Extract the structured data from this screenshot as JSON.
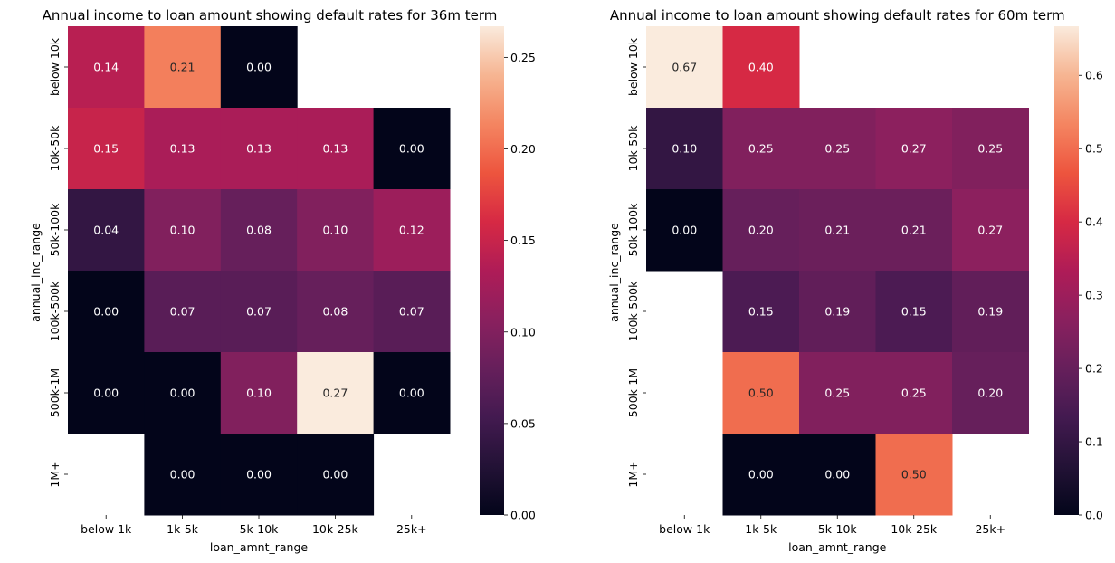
{
  "chart_data": [
    {
      "type": "heatmap",
      "title": "Annual income to loan amount showing default rates for 36m term",
      "xlabel": "loan_amnt_range",
      "ylabel": "annual_inc_range",
      "x_categories": [
        "below 1k",
        "1k-5k",
        "5k-10k",
        "10k-25k",
        "25k+"
      ],
      "y_categories": [
        "below 10k",
        "10k-50k",
        "50k-100k",
        "100k-500k",
        "500k-1M",
        "1M+"
      ],
      "values": [
        [
          0.14,
          0.21,
          0.0,
          null,
          null
        ],
        [
          0.15,
          0.13,
          0.13,
          0.13,
          0.0
        ],
        [
          0.04,
          0.1,
          0.08,
          0.1,
          0.12
        ],
        [
          0.0,
          0.07,
          0.07,
          0.08,
          0.07
        ],
        [
          0.0,
          0.0,
          0.1,
          0.27,
          0.0
        ],
        [
          null,
          0.0,
          0.0,
          0.0,
          null
        ]
      ],
      "value_labels": [
        [
          "0.14",
          "0.21",
          "0.00",
          "",
          ""
        ],
        [
          "0.15",
          "0.13",
          "0.13",
          "0.13",
          "0.00"
        ],
        [
          "0.04",
          "0.10",
          "0.08",
          "0.10",
          "0.12"
        ],
        [
          "0.00",
          "0.07",
          "0.07",
          "0.08",
          "0.07"
        ],
        [
          "0.00",
          "0.00",
          "0.10",
          "0.27",
          "0.00"
        ],
        [
          "",
          "0.00",
          "0.00",
          "0.00",
          ""
        ]
      ],
      "colorbar": {
        "range": [
          0,
          0.267
        ],
        "ticks": [
          "0.00",
          "0.05",
          "0.10",
          "0.15",
          "0.20",
          "0.25"
        ]
      },
      "colormap": "rocket"
    },
    {
      "type": "heatmap",
      "title": "Annual income to loan amount showing default rates for 60m term",
      "xlabel": "loan_amnt_range",
      "ylabel": "annual_inc_range",
      "x_categories": [
        "below 1k",
        "1k-5k",
        "5k-10k",
        "10k-25k",
        "25k+"
      ],
      "y_categories": [
        "below 10k",
        "10k-50k",
        "50k-100k",
        "100k-500k",
        "500k-1M",
        "1M+"
      ],
      "values": [
        [
          0.67,
          0.4,
          null,
          null,
          null
        ],
        [
          0.1,
          0.25,
          0.25,
          0.27,
          0.25
        ],
        [
          0.0,
          0.2,
          0.21,
          0.21,
          0.27
        ],
        [
          null,
          0.15,
          0.19,
          0.15,
          0.19
        ],
        [
          null,
          0.5,
          0.25,
          0.25,
          0.2
        ],
        [
          null,
          0.0,
          0.0,
          0.5,
          null
        ]
      ],
      "value_labels": [
        [
          "0.67",
          "0.40",
          "",
          "",
          ""
        ],
        [
          "0.10",
          "0.25",
          "0.25",
          "0.27",
          "0.25"
        ],
        [
          "0.00",
          "0.20",
          "0.21",
          "0.21",
          "0.27"
        ],
        [
          "",
          "0.15",
          "0.19",
          "0.15",
          "0.19"
        ],
        [
          "",
          "0.50",
          "0.25",
          "0.25",
          "0.20"
        ],
        [
          "",
          "0.00",
          "0.00",
          "0.50",
          ""
        ]
      ],
      "colorbar": {
        "range": [
          0,
          0.667
        ],
        "ticks": [
          "0.0",
          "0.1",
          "0.2",
          "0.3",
          "0.4",
          "0.5",
          "0.6"
        ]
      },
      "colormap": "rocket"
    }
  ]
}
